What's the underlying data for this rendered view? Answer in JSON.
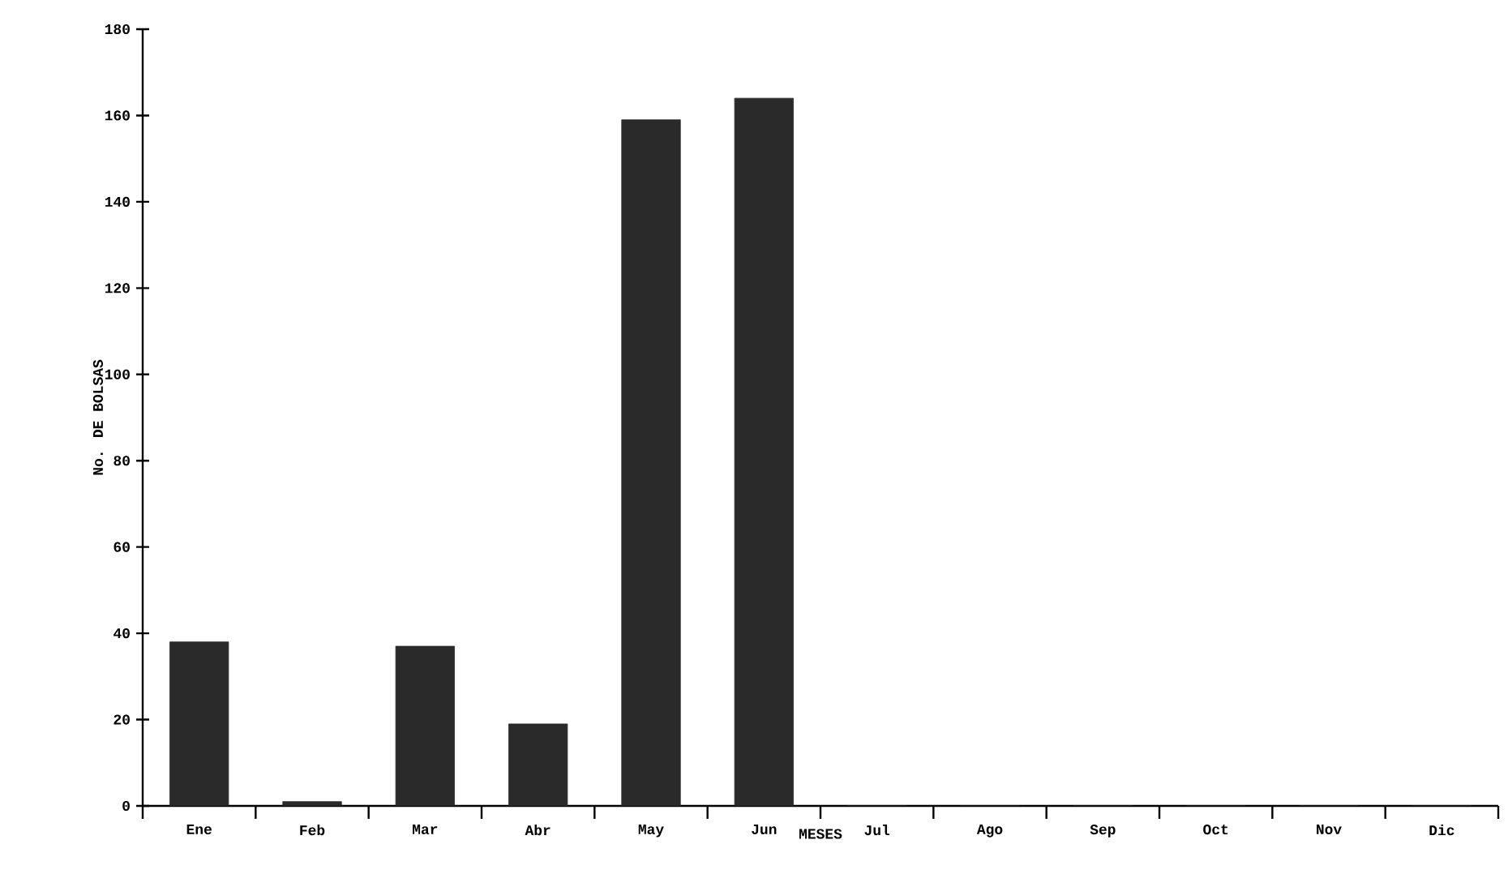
{
  "chart_data": {
    "type": "bar",
    "xlabel": "MESES",
    "ylabel": "No. DE BOLSAS",
    "categories": [
      "Ene",
      "Feb",
      "Mar",
      "Abr",
      "May",
      "Jun",
      "Jul",
      "Ago",
      "Sep",
      "Oct",
      "Nov",
      "Dic"
    ],
    "values": [
      38,
      1,
      37,
      19,
      159,
      164,
      0,
      0,
      0,
      0,
      0,
      0
    ],
    "color": "#2a2a2a",
    "ylim": [
      0,
      180
    ],
    "yticks": [
      0,
      20,
      40,
      60,
      80,
      100,
      120,
      140,
      160,
      180
    ],
    "grid": false
  }
}
